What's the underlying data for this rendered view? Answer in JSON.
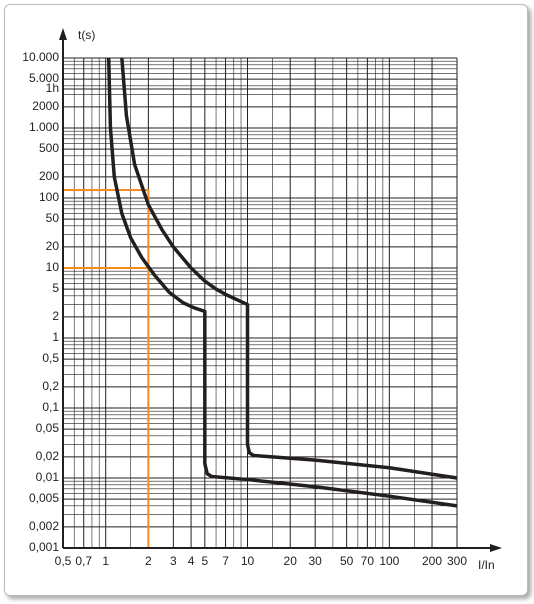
{
  "chart_data": {
    "type": "line",
    "y_title": "t(s)",
    "x_title": "I/In",
    "log_x": true,
    "log_y": true,
    "grid": true,
    "xlim": [
      0.5,
      300
    ],
    "ylim": [
      0.001,
      10000
    ],
    "xticks": [
      {
        "value": 0.5,
        "label": "0,5"
      },
      {
        "value": 0.7,
        "label": "0,7"
      },
      1,
      2,
      3,
      4,
      5,
      7,
      10,
      20,
      30,
      50,
      70,
      100,
      200,
      300
    ],
    "yticks": [
      {
        "value": 10000,
        "label": "10.000"
      },
      {
        "value": 5000,
        "label": "5.000"
      },
      {
        "value": 3600,
        "label": "1h"
      },
      2000,
      {
        "value": 1000,
        "label": "1.000"
      },
      500,
      200,
      100,
      50,
      20,
      10,
      5,
      2,
      1,
      {
        "value": 0.5,
        "label": "0,5"
      },
      {
        "value": 0.2,
        "label": "0,2"
      },
      {
        "value": 0.1,
        "label": "0,1"
      },
      {
        "value": 0.05,
        "label": "0,05"
      },
      {
        "value": 0.02,
        "label": "0,02"
      },
      {
        "value": 0.01,
        "label": "0,01"
      },
      {
        "value": 0.005,
        "label": "0,005"
      },
      {
        "value": 0.002,
        "label": "0,002"
      },
      {
        "value": 0.001,
        "label": "0,001"
      }
    ],
    "xgrid": [
      0.6,
      0.8,
      0.9,
      1.5,
      6,
      8,
      9,
      15,
      40,
      60,
      80,
      90,
      150
    ],
    "ygrid": [
      0.003,
      0.004,
      0.006,
      0.007,
      0.008,
      0.009,
      0.03,
      0.04,
      0.06,
      0.07,
      0.08,
      0.09,
      0.3,
      0.4,
      0.6,
      0.7,
      0.8,
      0.9,
      3,
      4,
      6,
      7,
      8,
      9,
      30,
      40,
      60,
      70,
      80,
      90,
      300,
      400,
      600,
      700,
      800,
      900,
      3000,
      4000,
      6000,
      7000,
      8000,
      9000
    ],
    "curves": [
      {
        "color": "#231f20",
        "x": [
          1.05,
          1.08,
          1.15,
          1.3,
          1.5,
          1.8,
          2.2,
          2.8,
          3.5,
          4.2,
          5,
          5,
          5.2,
          5.6,
          10,
          30,
          100,
          300
        ],
        "y": [
          10000,
          1000,
          200,
          60,
          27,
          14,
          8,
          4.5,
          3.2,
          2.7,
          2.4,
          0.016,
          0.0115,
          0.0105,
          0.0095,
          0.0075,
          0.0055,
          0.004
        ]
      },
      {
        "color": "#231f20",
        "x": [
          1.3,
          1.4,
          1.6,
          2,
          2.5,
          3,
          4,
          5,
          6,
          7,
          8.5,
          10,
          10,
          10.3,
          11,
          30,
          100,
          300
        ],
        "y": [
          10000,
          1500,
          300,
          80,
          35,
          20,
          10,
          6.5,
          5,
          4.2,
          3.5,
          3,
          0.03,
          0.023,
          0.021,
          0.018,
          0.014,
          0.01
        ]
      }
    ],
    "guides": [
      {
        "color": "#f28c1e",
        "x": [
          0.5,
          2,
          2
        ],
        "y": [
          130,
          130,
          0.001
        ]
      },
      {
        "color": "#f28c1e",
        "x": [
          0.5,
          2
        ],
        "y": [
          10,
          10
        ]
      }
    ]
  }
}
